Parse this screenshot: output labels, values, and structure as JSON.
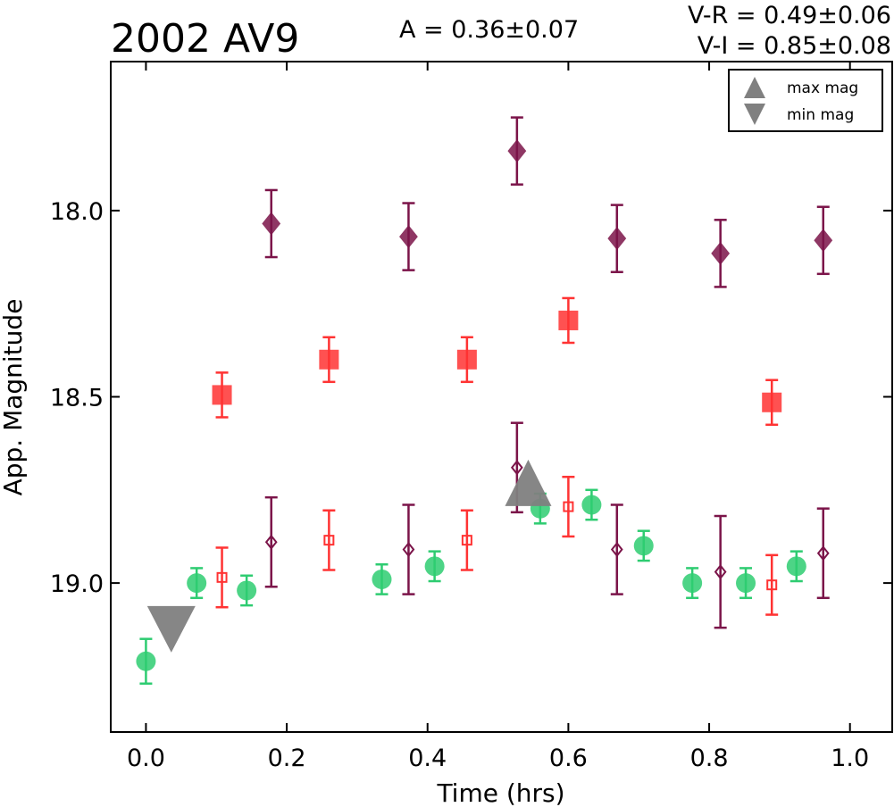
{
  "chart_data": {
    "type": "scatter",
    "title": "2002 AV9",
    "amplitude_label": "A  = 0.36±0.07",
    "color_labels": [
      "V-R = 0.49±0.06",
      "V-I  = 0.85±0.08"
    ],
    "xlabel": "Time (hrs)",
    "ylabel": "App. Magnitude",
    "xlim": [
      -0.05,
      1.06
    ],
    "ylim": [
      19.4,
      17.6
    ],
    "y_inverted": true,
    "x_ticks": [
      0.0,
      0.2,
      0.4,
      0.6,
      0.8,
      1.0
    ],
    "x_tick_labels": [
      "0.0",
      "0.2",
      "0.4",
      "0.6",
      "0.8",
      "1.0"
    ],
    "y_ticks": [
      18.0,
      18.5,
      19.0
    ],
    "y_tick_labels": [
      "18.0",
      "18.5",
      "19.0"
    ],
    "grid": false,
    "legend": {
      "placement": "top-right",
      "entries": [
        {
          "label": "max mag",
          "marker": "triangle-up",
          "color": "#808080"
        },
        {
          "label": "min mag",
          "marker": "triangle-down",
          "color": "#808080"
        }
      ]
    },
    "colors": {
      "green": "#2ecc71",
      "red": "#ff3333",
      "purple": "#7b1449",
      "gray": "#808080"
    },
    "series": [
      {
        "marker": "diamond",
        "filled": true,
        "color": "#7b1449",
        "x": [
          0.178,
          0.373,
          0.527,
          0.669,
          0.816,
          0.962
        ],
        "y": [
          18.035,
          18.07,
          17.84,
          18.075,
          18.115,
          18.08
        ],
        "err": [
          0.09,
          0.09,
          0.09,
          0.09,
          0.09,
          0.09
        ]
      },
      {
        "marker": "diamond",
        "filled": false,
        "color": "#7b1449",
        "x": [
          0.178,
          0.373,
          0.527,
          0.669,
          0.816,
          0.962
        ],
        "y": [
          18.89,
          18.91,
          18.69,
          18.91,
          18.97,
          18.92
        ],
        "err": [
          0.12,
          0.12,
          0.12,
          0.12,
          0.15,
          0.12
        ]
      },
      {
        "marker": "square",
        "filled": true,
        "color": "#ff3333",
        "x": [
          0.108,
          0.26,
          0.456,
          0.6,
          0.889
        ],
        "y": [
          18.495,
          18.4,
          18.4,
          18.295,
          18.515
        ],
        "err": [
          0.06,
          0.06,
          0.06,
          0.06,
          0.06
        ]
      },
      {
        "marker": "square",
        "filled": false,
        "color": "#ff3333",
        "x": [
          0.108,
          0.26,
          0.456,
          0.6,
          0.889
        ],
        "y": [
          18.985,
          18.885,
          18.885,
          18.795,
          19.005
        ],
        "err": [
          0.08,
          0.08,
          0.08,
          0.08,
          0.08
        ]
      },
      {
        "marker": "circle",
        "filled": true,
        "color": "#2ecc71",
        "x": [
          0.0,
          0.072,
          0.143,
          0.335,
          0.41,
          0.56,
          0.633,
          0.707,
          0.776,
          0.852,
          0.924
        ],
        "y": [
          19.21,
          19.0,
          19.02,
          18.99,
          18.955,
          18.8,
          18.79,
          18.9,
          19.0,
          19.0,
          18.955
        ],
        "err": [
          0.06,
          0.04,
          0.04,
          0.04,
          0.04,
          0.04,
          0.04,
          0.04,
          0.04,
          0.04,
          0.04
        ]
      },
      {
        "marker": "triangle-up",
        "filled": true,
        "color": "#808080",
        "x": [
          0.543
        ],
        "y": [
          18.755
        ],
        "err": [
          0
        ]
      },
      {
        "marker": "triangle-down",
        "filled": true,
        "color": "#808080",
        "x": [
          0.036
        ],
        "y": [
          19.1
        ],
        "err": [
          0
        ]
      }
    ]
  }
}
